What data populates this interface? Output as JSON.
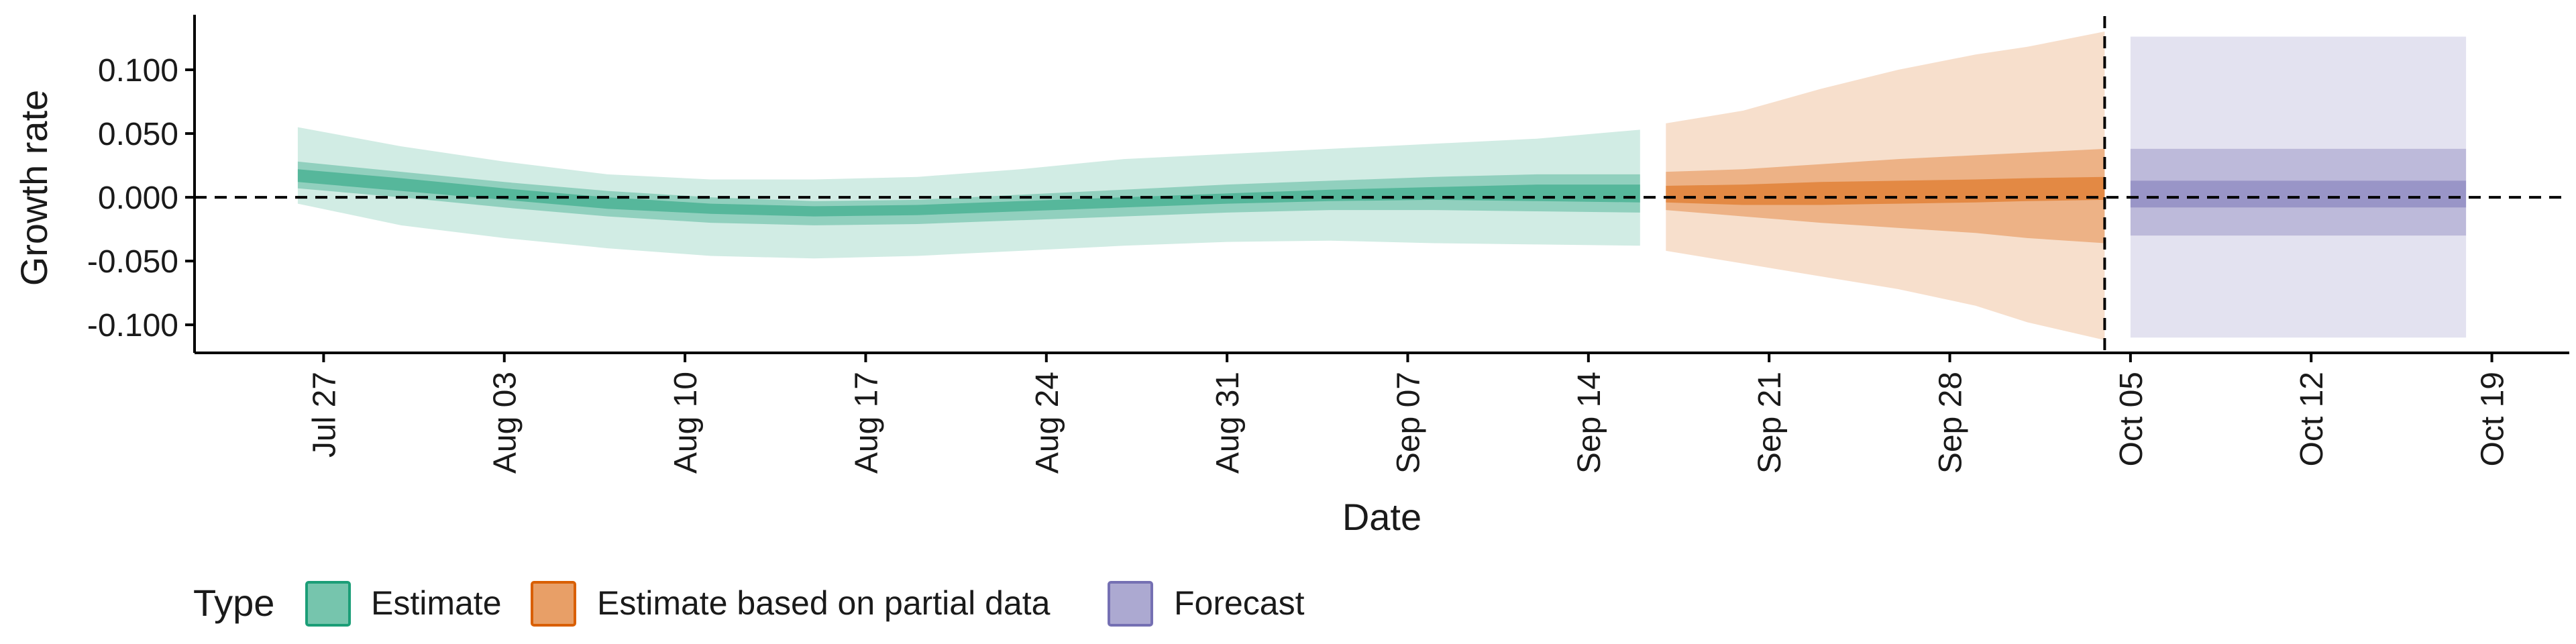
{
  "chart_data": {
    "type": "area",
    "title": "",
    "xlabel": "Date",
    "ylabel": "Growth rate",
    "x_type": "date",
    "xlim": [
      "2020-07-22",
      "2020-10-22"
    ],
    "ylim": [
      -0.122,
      0.14
    ],
    "x_ticks": [
      {
        "date": "2020-07-27",
        "label": "Jul 27"
      },
      {
        "date": "2020-08-03",
        "label": "Aug 03"
      },
      {
        "date": "2020-08-10",
        "label": "Aug 10"
      },
      {
        "date": "2020-08-17",
        "label": "Aug 17"
      },
      {
        "date": "2020-08-24",
        "label": "Aug 24"
      },
      {
        "date": "2020-08-31",
        "label": "Aug 31"
      },
      {
        "date": "2020-09-07",
        "label": "Sep 07"
      },
      {
        "date": "2020-09-14",
        "label": "Sep 14"
      },
      {
        "date": "2020-09-21",
        "label": "Sep 21"
      },
      {
        "date": "2020-09-28",
        "label": "Sep 28"
      },
      {
        "date": "2020-10-05",
        "label": "Oct 05"
      },
      {
        "date": "2020-10-12",
        "label": "Oct 12"
      },
      {
        "date": "2020-10-19",
        "label": "Oct 19"
      }
    ],
    "y_ticks": [
      {
        "value": 0.1,
        "label": "0.100"
      },
      {
        "value": 0.05,
        "label": "0.050"
      },
      {
        "value": 0.0,
        "label": "0.000"
      },
      {
        "value": -0.05,
        "label": "-0.050"
      },
      {
        "value": -0.1,
        "label": "-0.100"
      }
    ],
    "reference_lines": [
      {
        "axis": "y",
        "value": 0.0,
        "style": "dashed"
      },
      {
        "axis": "x",
        "value": "2020-10-04",
        "style": "dashed"
      }
    ],
    "legend": {
      "title": "Type",
      "position": "bottom",
      "entries": [
        {
          "label": "Estimate",
          "color": "#1b9e77"
        },
        {
          "label": "Estimate based on partial data",
          "color": "#d95f02"
        },
        {
          "label": "Forecast",
          "color": "#7570b3"
        }
      ]
    },
    "series": [
      {
        "name": "Estimate",
        "color": "#1b9e77",
        "x": [
          "2020-07-26",
          "2020-07-30",
          "2020-08-03",
          "2020-08-07",
          "2020-08-11",
          "2020-08-15",
          "2020-08-19",
          "2020-08-23",
          "2020-08-27",
          "2020-08-31",
          "2020-09-04",
          "2020-09-08",
          "2020-09-12",
          "2020-09-16"
        ],
        "bands": [
          {
            "level": "90%",
            "lower": [
              -0.005,
              -0.022,
              -0.032,
              -0.04,
              -0.046,
              -0.048,
              -0.046,
              -0.042,
              -0.038,
              -0.035,
              -0.034,
              -0.036,
              -0.037,
              -0.038
            ],
            "upper": [
              0.055,
              0.04,
              0.028,
              0.018,
              0.014,
              0.014,
              0.016,
              0.022,
              0.03,
              0.034,
              0.038,
              0.042,
              0.046,
              0.053
            ]
          },
          {
            "level": "50%",
            "lower": [
              0.007,
              0.0,
              -0.008,
              -0.015,
              -0.02,
              -0.022,
              -0.021,
              -0.018,
              -0.015,
              -0.012,
              -0.01,
              -0.01,
              -0.011,
              -0.012
            ],
            "upper": [
              0.028,
              0.02,
              0.012,
              0.005,
              0.0,
              -0.003,
              -0.002,
              0.002,
              0.006,
              0.01,
              0.013,
              0.016,
              0.018,
              0.018
            ]
          },
          {
            "level": "20%",
            "lower": [
              0.012,
              0.005,
              -0.002,
              -0.009,
              -0.013,
              -0.015,
              -0.014,
              -0.011,
              -0.008,
              -0.005,
              -0.003,
              -0.002,
              -0.003,
              -0.004
            ],
            "upper": [
              0.022,
              0.015,
              0.007,
              0.0,
              -0.005,
              -0.007,
              -0.006,
              -0.003,
              0.0,
              0.003,
              0.006,
              0.008,
              0.01,
              0.01
            ]
          }
        ]
      },
      {
        "name": "Estimate based on partial data",
        "color": "#d95f02",
        "x": [
          "2020-09-17",
          "2020-09-20",
          "2020-09-23",
          "2020-09-26",
          "2020-09-29",
          "2020-10-01",
          "2020-10-04"
        ],
        "bands": [
          {
            "level": "90%",
            "lower": [
              -0.042,
              -0.052,
              -0.062,
              -0.072,
              -0.085,
              -0.098,
              -0.112
            ],
            "upper": [
              0.058,
              0.068,
              0.085,
              0.1,
              0.112,
              0.118,
              0.13
            ]
          },
          {
            "level": "50%",
            "lower": [
              -0.01,
              -0.015,
              -0.02,
              -0.024,
              -0.028,
              -0.032,
              -0.036
            ],
            "upper": [
              0.02,
              0.022,
              0.026,
              0.03,
              0.033,
              0.035,
              0.038
            ]
          },
          {
            "level": "20%",
            "lower": [
              -0.004,
              -0.006,
              -0.006,
              -0.005,
              -0.004,
              -0.003,
              -0.002
            ],
            "upper": [
              0.009,
              0.01,
              0.012,
              0.013,
              0.014,
              0.015,
              0.016
            ]
          }
        ]
      },
      {
        "name": "Forecast",
        "color": "#7570b3",
        "x": [
          "2020-10-05",
          "2020-10-18"
        ],
        "bands": [
          {
            "level": "90%",
            "lower": [
              -0.11,
              -0.11
            ],
            "upper": [
              0.126,
              0.126
            ]
          },
          {
            "level": "50%",
            "lower": [
              -0.03,
              -0.03
            ],
            "upper": [
              0.038,
              0.038
            ]
          },
          {
            "level": "20%",
            "lower": [
              -0.008,
              -0.008
            ],
            "upper": [
              0.013,
              0.013
            ]
          }
        ]
      }
    ]
  }
}
